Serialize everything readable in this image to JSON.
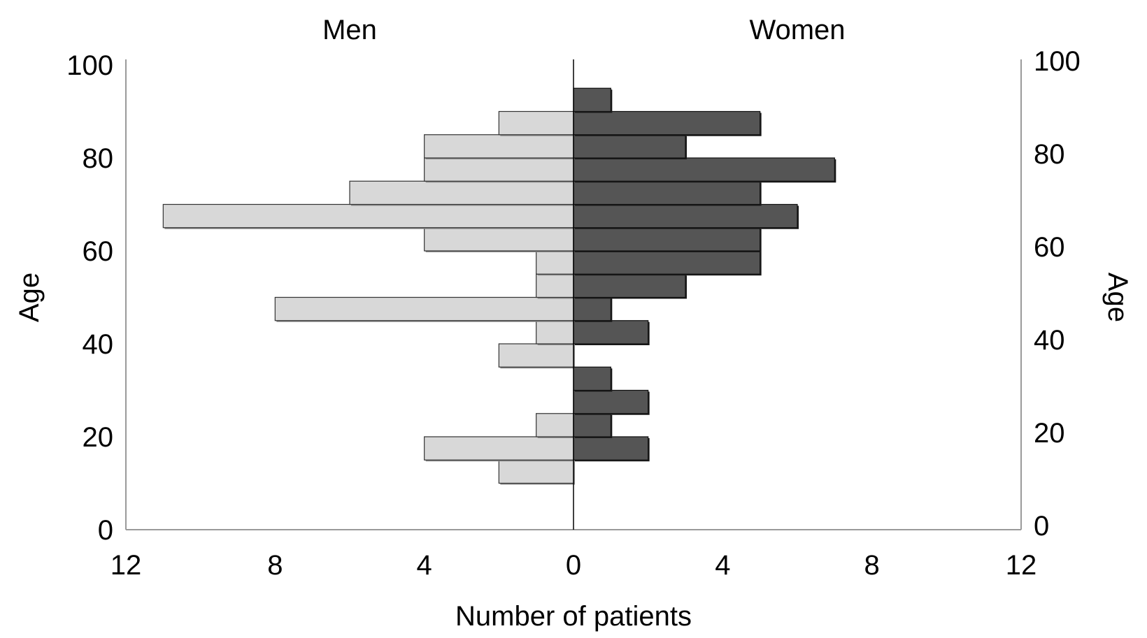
{
  "chart_data": {
    "type": "bar",
    "orientation": "horizontal-mirrored",
    "left_panel_title": "Men",
    "right_panel_title": "Women",
    "ylabel_left": "Age",
    "ylabel_right": "Age",
    "xlabel": "Number of patients",
    "ylim": [
      0,
      100
    ],
    "y_ticks": [
      0,
      20,
      40,
      60,
      80,
      100
    ],
    "xlim_each_side": [
      0,
      12
    ],
    "x_tick_labels_left": [
      "12",
      "8",
      "4",
      "0"
    ],
    "x_tick_labels_right": [
      "4",
      "8",
      "12"
    ],
    "grid": false,
    "bin_width": 5,
    "categories": [
      "10-15",
      "15-20",
      "20-25",
      "25-30",
      "30-35",
      "35-40",
      "40-45",
      "45-50",
      "50-55",
      "55-60",
      "60-65",
      "65-70",
      "70-75",
      "75-80",
      "80-85",
      "85-90",
      "90-95",
      "95-100"
    ],
    "series": [
      {
        "name": "Men",
        "color": "#d8d8d8",
        "values": [
          2,
          4,
          1,
          0,
          0,
          2,
          1,
          8,
          1,
          1,
          4,
          11,
          6,
          4,
          4,
          2,
          0,
          0
        ]
      },
      {
        "name": "Women",
        "color": "#555555",
        "values": [
          0,
          2,
          1,
          2,
          1,
          0,
          2,
          1,
          3,
          5,
          5,
          6,
          5,
          7,
          3,
          5,
          1,
          0
        ]
      }
    ]
  }
}
